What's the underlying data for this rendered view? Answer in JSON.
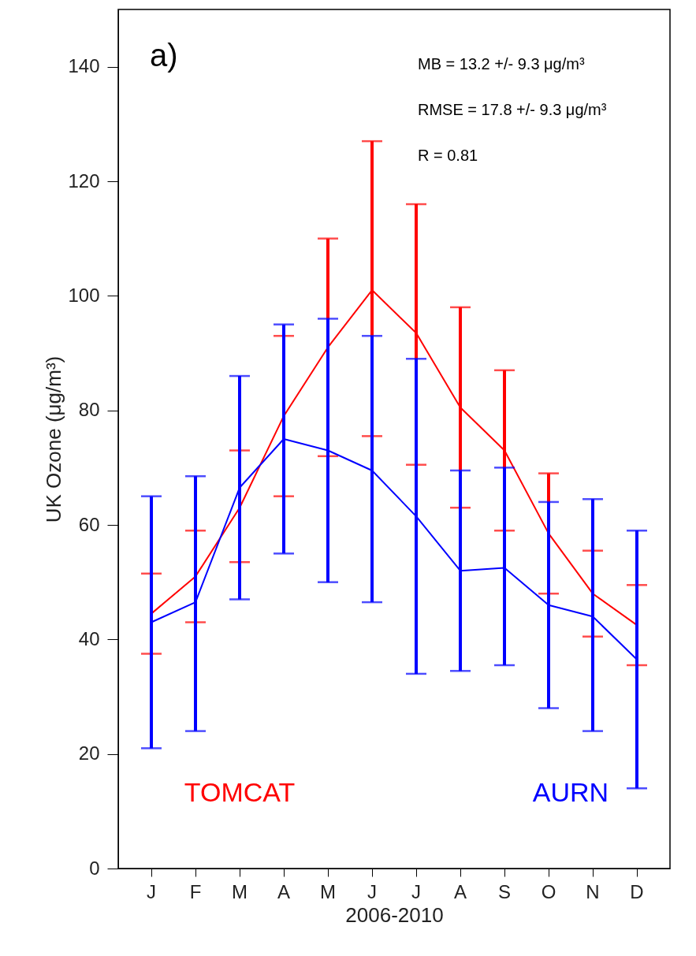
{
  "chart_data": {
    "type": "line",
    "xlabel": "2006-2010",
    "ylabel": "UK Ozone (μg/m³)",
    "categories": [
      "J",
      "F",
      "M",
      "A",
      "M",
      "J",
      "J",
      "A",
      "S",
      "O",
      "N",
      "D"
    ],
    "series": [
      {
        "name": "TOMCAT",
        "color": "#ff0000",
        "values": [
          44.5,
          51,
          63,
          79,
          91,
          101,
          93.5,
          80.5,
          73,
          58.5,
          48,
          42.5
        ],
        "errors": [
          [
            37.5,
            51.5
          ],
          [
            43,
            59
          ],
          [
            53.5,
            73
          ],
          [
            65,
            93
          ],
          [
            72,
            110
          ],
          [
            75.5,
            127
          ],
          [
            70.5,
            116
          ],
          [
            63,
            98
          ],
          [
            59,
            87
          ],
          [
            48,
            69
          ],
          [
            40.5,
            55.5
          ],
          [
            35.5,
            49.5
          ]
        ]
      },
      {
        "name": "AURN",
        "color": "#0000ff",
        "values": [
          43,
          46.5,
          66.5,
          75,
          73,
          69.5,
          61.5,
          52,
          52.5,
          46,
          44,
          36.5
        ],
        "errors": [
          [
            21,
            65
          ],
          [
            24,
            68.5
          ],
          [
            47,
            86
          ],
          [
            55,
            95
          ],
          [
            50,
            96
          ],
          [
            46.5,
            93
          ],
          [
            34,
            89
          ],
          [
            34.5,
            69.5
          ],
          [
            35.5,
            70
          ],
          [
            28,
            64
          ],
          [
            24,
            64.5
          ],
          [
            14,
            59
          ]
        ]
      }
    ],
    "ylim": [
      0,
      150
    ],
    "yticks": [
      0,
      20,
      40,
      60,
      80,
      100,
      120,
      140
    ],
    "annotations": [
      "a)",
      "MB = 13.2 +/- 9.3 μg/m³",
      "RMSE = 17.8 +/- 9.3 μg/m³",
      "R = 0.81"
    ],
    "legend": "bottom",
    "marker": "none",
    "line_style": "solid",
    "grid": false
  }
}
